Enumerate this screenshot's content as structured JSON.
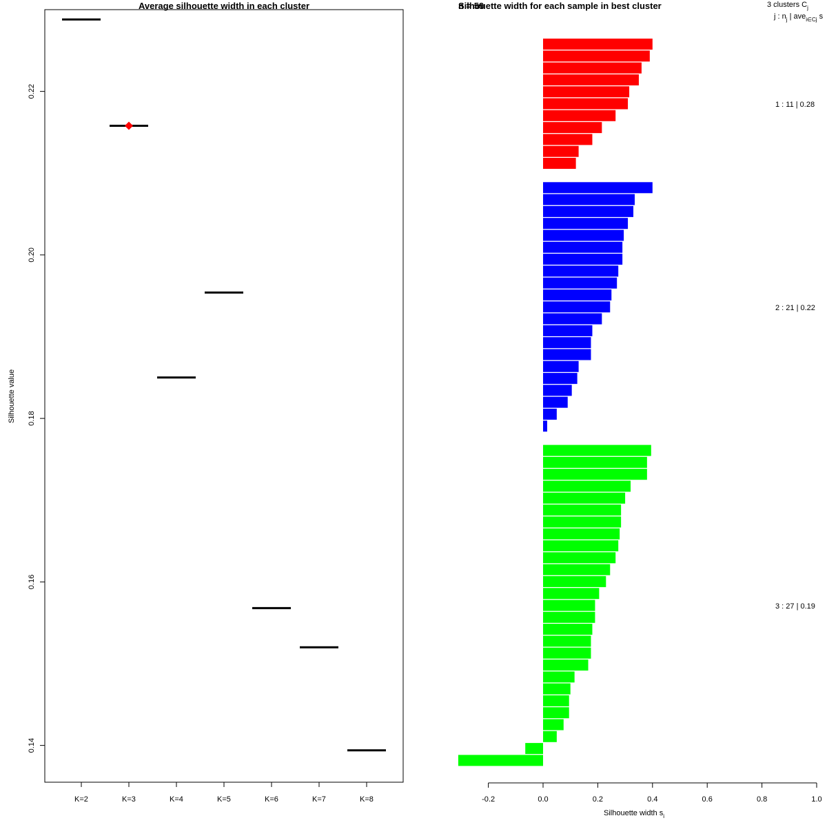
{
  "chart_data": [
    {
      "type": "scatter",
      "title": "Average silhouette width in each cluster",
      "xlabel": "",
      "ylabel": "Silhouette value",
      "categories": [
        "K=2",
        "K=3",
        "K=4",
        "K=5",
        "K=6",
        "K=7",
        "K=8"
      ],
      "values": [
        0.2288,
        0.2158,
        0.185,
        0.1954,
        0.1568,
        0.152,
        0.1394
      ],
      "yticks": [
        0.14,
        0.16,
        0.18,
        0.2,
        0.22
      ],
      "ytick_labels": [
        "0.14",
        "0.16",
        "0.18",
        "0.20",
        "0.22"
      ],
      "ylim": [
        0.1355,
        0.23
      ],
      "best_index": 1,
      "marker_color": "#000000",
      "best_color": "#ff0000"
    },
    {
      "type": "bar",
      "orientation": "horizontal",
      "title": "Silhouette width for each sample in best cluster",
      "title_overlap": "n = 59",
      "xlabel": "Silhouette width s",
      "xlabel_sub": "i",
      "xlim": [
        -0.2,
        1.0
      ],
      "xticks": [
        -0.2,
        0,
        0.2,
        0.4,
        0.6,
        0.8,
        1.0
      ],
      "xtick_labels": [
        "-0.2",
        "0.0",
        "0.2",
        "0.4",
        "0.6",
        "0.8",
        "1.0"
      ],
      "legend_header_1": "3  clusters  C",
      "legend_header_1_sub": "j",
      "legend_header_2": "j :  n",
      "legend_header_2_sub": "j",
      "legend_header_2_mid": " | ave",
      "legend_header_2_sub2": "i∈Cj",
      "legend_header_2_end": "  s",
      "clusters": [
        {
          "id": 1,
          "size": 11,
          "avg": "0.28",
          "label": "1 :  11  |  0.28",
          "color": "#ff0000",
          "values": [
            0.4,
            0.39,
            0.36,
            0.35,
            0.315,
            0.31,
            0.265,
            0.215,
            0.18,
            0.13,
            0.12
          ]
        },
        {
          "id": 2,
          "size": 21,
          "avg": "0.22",
          "label": "2 :  21  |  0.22",
          "color": "#0000ff",
          "values": [
            0.4,
            0.335,
            0.33,
            0.31,
            0.295,
            0.29,
            0.29,
            0.275,
            0.27,
            0.25,
            0.245,
            0.215,
            0.18,
            0.175,
            0.175,
            0.13,
            0.125,
            0.105,
            0.09,
            0.05,
            0.015
          ]
        },
        {
          "id": 3,
          "size": 27,
          "avg": "0.19",
          "label": "3 :  27  |  0.19",
          "color": "#00ff00",
          "values": [
            0.395,
            0.38,
            0.38,
            0.32,
            0.3,
            0.285,
            0.285,
            0.28,
            0.275,
            0.265,
            0.245,
            0.23,
            0.205,
            0.19,
            0.19,
            0.18,
            0.175,
            0.175,
            0.165,
            0.115,
            0.1,
            0.095,
            0.095,
            0.075,
            0.05,
            -0.065,
            -0.31
          ]
        }
      ]
    }
  ]
}
